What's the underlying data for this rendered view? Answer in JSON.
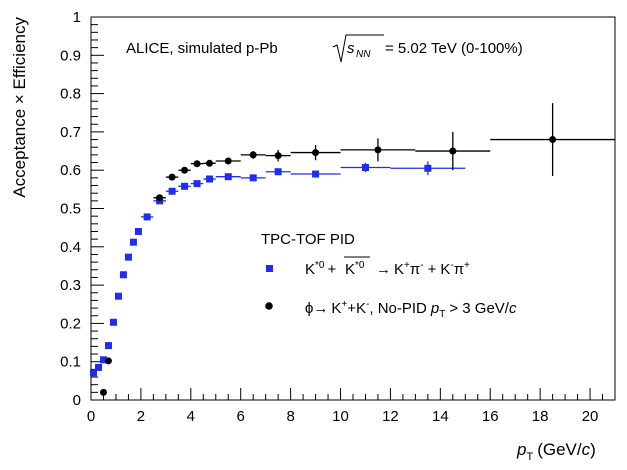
{
  "chart_data": {
    "type": "scatter",
    "annotation": {
      "experiment": "ALICE, simulated p-Pb",
      "energy_sqrt": "s",
      "energy_sub": "NN",
      "energy_value": "= 5.02 TeV (0-100%)"
    },
    "legend": {
      "header": "TPC-TOF PID",
      "placement": "center-right",
      "kstar": {
        "k": "K",
        "sup1": "*0",
        "plus": "+",
        "sup2": "*0",
        "arrow": "→",
        "rest1a": "K",
        "rest1b": "π",
        "rest2a": "K",
        "rest2b": "π",
        "sign_plus": "+",
        "sign_minus": "-"
      },
      "phi": {
        "phi": "ϕ",
        "arrow": "→",
        "decay": "K+K",
        "nopid": ", No-PID",
        "cut": "> 3 GeV/",
        "c": "c",
        "sign_plus": "+",
        "sign_minus": "-"
      }
    },
    "xlabel": {
      "p": "p",
      "sub": "T",
      "units": "(GeV/",
      "c": "c",
      "close": ")"
    },
    "ylabel": "Acceptance × Efficiency",
    "xlim": [
      0,
      21
    ],
    "ylim": [
      0,
      1
    ],
    "x_ticks": [
      0,
      2,
      4,
      6,
      8,
      10,
      12,
      14,
      16,
      18,
      20
    ],
    "y_ticks": [
      0,
      0.1,
      0.2,
      0.3,
      0.4,
      0.5,
      0.6,
      0.7,
      0.8,
      0.9,
      1
    ],
    "y_tick_labels": [
      "0",
      "0.1",
      "0.2",
      "0.3",
      "0.4",
      "0.5",
      "0.6",
      "0.7",
      "0.8",
      "0.9",
      "1"
    ],
    "grid": false,
    "series": [
      {
        "color": "#1f2df0",
        "marker": "square",
        "points": [
          {
            "x": 0.1,
            "xlo": 0.0,
            "xhi": 0.2,
            "y": 0.071
          },
          {
            "x": 0.3,
            "xlo": 0.2,
            "xhi": 0.4,
            "y": 0.085
          },
          {
            "x": 0.5,
            "xlo": 0.4,
            "xhi": 0.6,
            "y": 0.105
          },
          {
            "x": 0.7,
            "xlo": 0.6,
            "xhi": 0.8,
            "y": 0.142
          },
          {
            "x": 0.9,
            "xlo": 0.8,
            "xhi": 1.0,
            "y": 0.203
          },
          {
            "x": 1.1,
            "xlo": 1.0,
            "xhi": 1.2,
            "y": 0.271
          },
          {
            "x": 1.3,
            "xlo": 1.2,
            "xhi": 1.4,
            "y": 0.327
          },
          {
            "x": 1.5,
            "xlo": 1.4,
            "xhi": 1.6,
            "y": 0.373
          },
          {
            "x": 1.7,
            "xlo": 1.6,
            "xhi": 1.8,
            "y": 0.412
          },
          {
            "x": 1.9,
            "xlo": 1.8,
            "xhi": 2.0,
            "y": 0.44
          },
          {
            "x": 2.25,
            "xlo": 2.0,
            "xhi": 2.5,
            "y": 0.478
          },
          {
            "x": 2.75,
            "xlo": 2.5,
            "xhi": 3.0,
            "y": 0.52
          },
          {
            "x": 3.25,
            "xlo": 3.0,
            "xhi": 3.5,
            "y": 0.545
          },
          {
            "x": 3.75,
            "xlo": 3.5,
            "xhi": 4.0,
            "y": 0.558
          },
          {
            "x": 4.25,
            "xlo": 4.0,
            "xhi": 4.5,
            "y": 0.565
          },
          {
            "x": 4.75,
            "xlo": 4.5,
            "xhi": 5.0,
            "y": 0.577
          },
          {
            "x": 5.5,
            "xlo": 5.0,
            "xhi": 6.0,
            "y": 0.583
          },
          {
            "x": 6.5,
            "xlo": 6.0,
            "xhi": 7.0,
            "y": 0.58
          },
          {
            "x": 7.5,
            "xlo": 7.0,
            "xhi": 8.0,
            "y": 0.596
          },
          {
            "x": 9.0,
            "xlo": 8.0,
            "xhi": 10.0,
            "y": 0.59
          },
          {
            "x": 11.0,
            "xlo": 10.0,
            "xhi": 12.0,
            "y": 0.607,
            "err": 0.012
          },
          {
            "x": 13.5,
            "xlo": 12.0,
            "xhi": 15.0,
            "y": 0.605,
            "err": 0.018
          }
        ]
      },
      {
        "color": "#000000",
        "marker": "circle",
        "points": [
          {
            "x": 0.5,
            "xlo": 0.4,
            "xhi": 0.6,
            "y": 0.02
          },
          {
            "x": 0.7,
            "xlo": 0.6,
            "xhi": 0.8,
            "y": 0.102
          },
          {
            "x": 2.75,
            "xlo": 2.5,
            "xhi": 3.0,
            "y": 0.528
          },
          {
            "x": 3.25,
            "xlo": 3.0,
            "xhi": 3.5,
            "y": 0.582
          },
          {
            "x": 3.75,
            "xlo": 3.5,
            "xhi": 4.0,
            "y": 0.6
          },
          {
            "x": 4.25,
            "xlo": 4.0,
            "xhi": 4.5,
            "y": 0.617
          },
          {
            "x": 4.75,
            "xlo": 4.5,
            "xhi": 5.0,
            "y": 0.618
          },
          {
            "x": 5.5,
            "xlo": 5.0,
            "xhi": 6.0,
            "y": 0.624
          },
          {
            "x": 6.5,
            "xlo": 6.0,
            "xhi": 7.0,
            "y": 0.64,
            "err": 0.01
          },
          {
            "x": 7.5,
            "xlo": 7.0,
            "xhi": 8.0,
            "y": 0.638,
            "err": 0.015
          },
          {
            "x": 9.0,
            "xlo": 8.0,
            "xhi": 10.0,
            "y": 0.646,
            "err": 0.02
          },
          {
            "x": 11.5,
            "xlo": 10.0,
            "xhi": 13.0,
            "y": 0.653,
            "err": 0.03
          },
          {
            "x": 14.5,
            "xlo": 13.0,
            "xhi": 16.0,
            "y": 0.65,
            "err": 0.05
          },
          {
            "x": 18.5,
            "xlo": 16.0,
            "xhi": 21.0,
            "y": 0.68,
            "err": 0.095
          }
        ]
      }
    ]
  }
}
